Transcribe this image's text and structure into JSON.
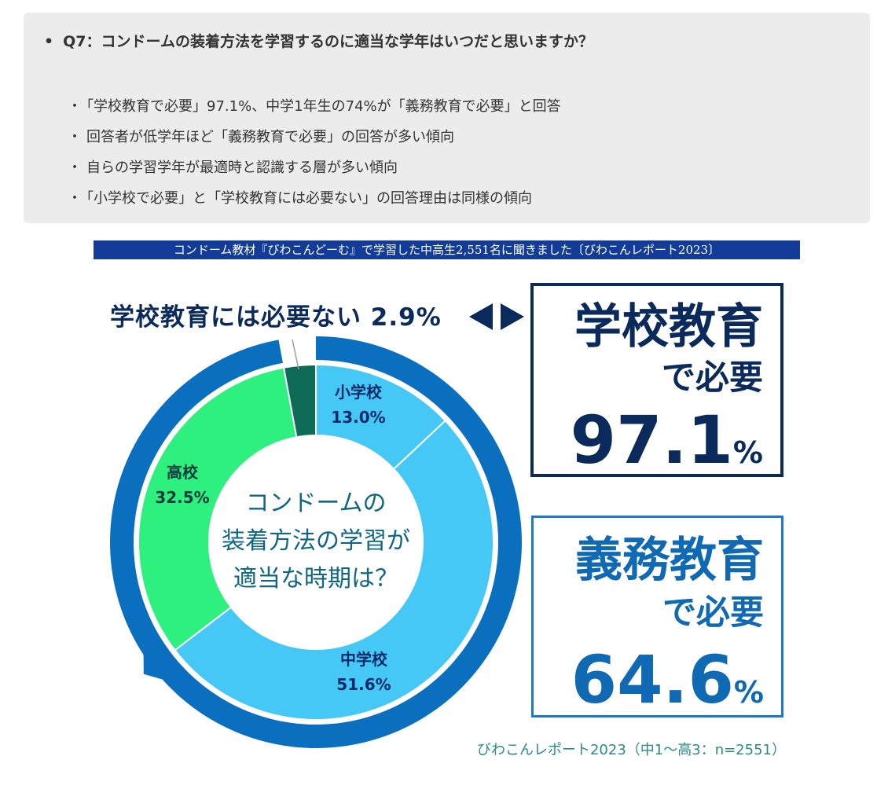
{
  "summary": {
    "title": "Q7：コンドームの装着方法を学習するのに適当な学年はいつだと思いますか？",
    "points": [
      "「学校教育で必要」97.1%、中学1年生の74%が「義務教育で必要」と回答",
      "回答者が低学年ほど「義務教育で必要」の回答が多い傾向",
      "自らの学習学年が最適時と認識する層が多い傾向",
      "「小学校で必要」と「学校教育には必要ない」の回答理由は同様の傾向"
    ]
  },
  "banner": "コンドーム教材『びわこんどーむ』で学習した中高生2,551名に聞きました〔びわこんレポート2023〕",
  "not_needed_label": "学校教育には必要ない  2.9%",
  "panels": {
    "school": {
      "line1": "学校教育",
      "line2": "で必要",
      "value": "97.1",
      "unit": "%"
    },
    "mandatory": {
      "line1": "義務教育",
      "line2": "で必要",
      "value": "64.6",
      "unit": "%"
    }
  },
  "source": "びわこんレポート2023（中1〜高3：n=2551）",
  "colors": {
    "elementary": "#45c8f5",
    "junior_high": "#45c8f5",
    "high_school": "#2ef07e",
    "not_needed": "#0e6b55",
    "outer_ring": "#0b6fc0",
    "navy": "#0b2a5c",
    "center_text": "#0f6682"
  },
  "chart_data": {
    "type": "pie",
    "center_text": [
      "コンドームの",
      "装着方法の学習が",
      "適当な時期は？"
    ],
    "slices": [
      {
        "label": "小学校",
        "value": 13.0,
        "display": "13.0%"
      },
      {
        "label": "中学校",
        "value": 51.6,
        "display": "51.6%"
      },
      {
        "label": "高校",
        "value": 32.5,
        "display": "32.5%"
      },
      {
        "label": "学校教育には必要ない",
        "value": 2.9,
        "display": "2.9%"
      }
    ],
    "outer_ring": [
      {
        "label": "学校教育で必要",
        "value": 97.1
      },
      {
        "label": "義務教育で必要",
        "value": 64.6
      }
    ]
  }
}
